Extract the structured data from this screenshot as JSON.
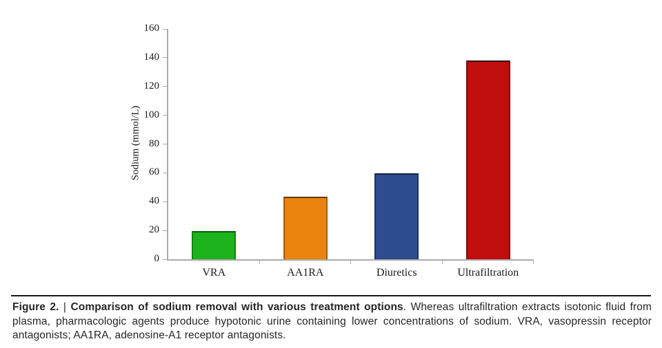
{
  "chart_data": {
    "type": "bar",
    "title": "",
    "categories": [
      "VRA",
      "AA1RA",
      "Diuretics",
      "Ultrafiltration"
    ],
    "values": [
      19.5,
      43.5,
      59.5,
      138
    ],
    "xlabel": "",
    "ylabel": "Sodium (mmol/L)",
    "ylim": [
      0,
      160
    ],
    "yticks": [
      0,
      20,
      40,
      60,
      80,
      100,
      120,
      140,
      160
    ],
    "grid": false,
    "legend": "none",
    "bar_colors": [
      {
        "fill": "#1db31d",
        "edge": "#0c860c",
        "top": "#0a5a0a"
      },
      {
        "fill": "#e8830f",
        "edge": "#a35a0a",
        "top": "#5f3a06"
      },
      {
        "fill": "#2f4c90",
        "edge": "#1e3263",
        "top": "#131f3f"
      },
      {
        "fill": "#c00d0d",
        "edge": "#7d0707",
        "top": "#320202"
      }
    ],
    "axis_color": "#ababab",
    "text_color": "#1a1a1a"
  },
  "caption": {
    "label": "Figure 2.",
    "separator": "|",
    "title": "Comparison of sodium removal with various treatment options",
    "body": ". Whereas ultrafiltration extracts isotonic fluid from plasma, pharmacologic agents produce hypotonic urine containing lower concentrations of sodium. VRA, vasopressin receptor antagonists; AA1RA, adenosine-A1 receptor antagonists."
  }
}
